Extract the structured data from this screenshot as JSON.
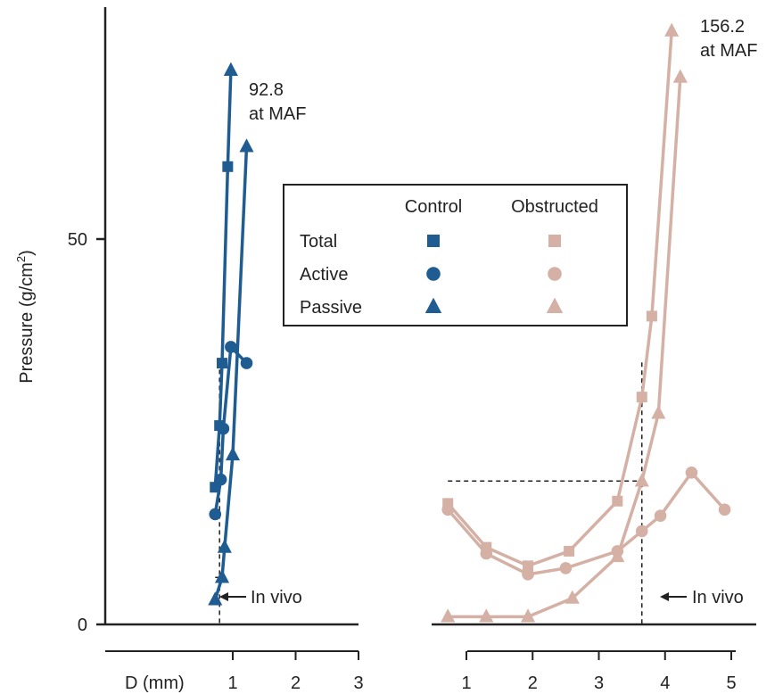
{
  "chart_data": {
    "type": "line",
    "ylabel_main": "Pressure (g/cm",
    "ylabel_sup": "2",
    "ylabel_close": ")",
    "yticks": [
      0,
      50
    ],
    "ylim": [
      0,
      80
    ],
    "colors": {
      "control": "#1f5c91",
      "obstructed": "#d4b0a5",
      "axis": "#222222"
    },
    "legend": {
      "col_headers": [
        "Control",
        "Obstructed"
      ],
      "rows": [
        {
          "label": "Total",
          "marker": "square"
        },
        {
          "label": "Active",
          "marker": "circle"
        },
        {
          "label": "Passive",
          "marker": "triangle"
        }
      ],
      "position": "upper-center"
    },
    "panels": [
      {
        "group": "Control",
        "xaxis_prefix": "D (mm)",
        "xticks": [
          1,
          2,
          3
        ],
        "xlim": [
          0,
          3
        ],
        "series": [
          {
            "label": "Total",
            "marker": "square",
            "x": [
              0.72,
              0.79,
              0.83,
              0.92
            ],
            "y": [
              17.8,
              25.8,
              33.9,
              59.4
            ]
          },
          {
            "label": "Active",
            "marker": "circle",
            "x": [
              0.72,
              0.81,
              0.85,
              0.97,
              1.22
            ],
            "y": [
              14.3,
              18.8,
              25.4,
              36.0,
              33.9
            ]
          },
          {
            "label": "Passive",
            "marker": "triangle",
            "x": [
              0.72,
              0.83,
              0.87,
              1.0,
              1.22
            ],
            "y": [
              3.2,
              6.1,
              10.0,
              22.0,
              62.0
            ]
          },
          {
            "label": "Total (to MAF)",
            "marker": "triangle",
            "x": [
              0.92,
              0.97
            ],
            "y": [
              59.4,
              71.9
            ]
          }
        ],
        "dashed": {
          "x": 0.79,
          "y": 6.1
        },
        "invivo_label": "In vivo",
        "maf_value": "92.8",
        "maf_text": "at MAF"
      },
      {
        "group": "Obstructed",
        "xticks": [
          1,
          2,
          3,
          4,
          5
        ],
        "xlim": [
          0.6,
          5.2
        ],
        "series": [
          {
            "label": "Total",
            "marker": "square",
            "x": [
              0.72,
              1.3,
              1.93,
              2.55,
              3.28,
              3.65,
              3.8
            ],
            "y": [
              15.7,
              10.0,
              7.6,
              9.5,
              16.0,
              29.5,
              40.0
            ]
          },
          {
            "label": "Active",
            "marker": "circle",
            "x": [
              0.72,
              1.3,
              1.93,
              2.5,
              3.28,
              3.65,
              3.93,
              4.4,
              4.9
            ],
            "y": [
              14.9,
              9.2,
              6.5,
              7.3,
              9.5,
              12.1,
              14.1,
              19.7,
              14.9
            ]
          },
          {
            "label": "Passive",
            "marker": "triangle",
            "x": [
              0.72,
              1.3,
              1.93,
              2.6,
              3.28,
              3.65,
              3.9,
              4.23
            ],
            "y": [
              1.0,
              1.0,
              1.0,
              3.4,
              8.8,
              18.6,
              27.4,
              71.0
            ]
          },
          {
            "label": "Total (to MAF)",
            "marker": "triangle",
            "x": [
              3.8,
              4.1
            ],
            "y": [
              40.0,
              77.0
            ]
          }
        ],
        "dashed": {
          "x": 3.65,
          "y": 18.6,
          "vtop": 34.0
        },
        "invivo_label": "In vivo",
        "maf_value": "156.2",
        "maf_text": "at MAF"
      }
    ]
  }
}
